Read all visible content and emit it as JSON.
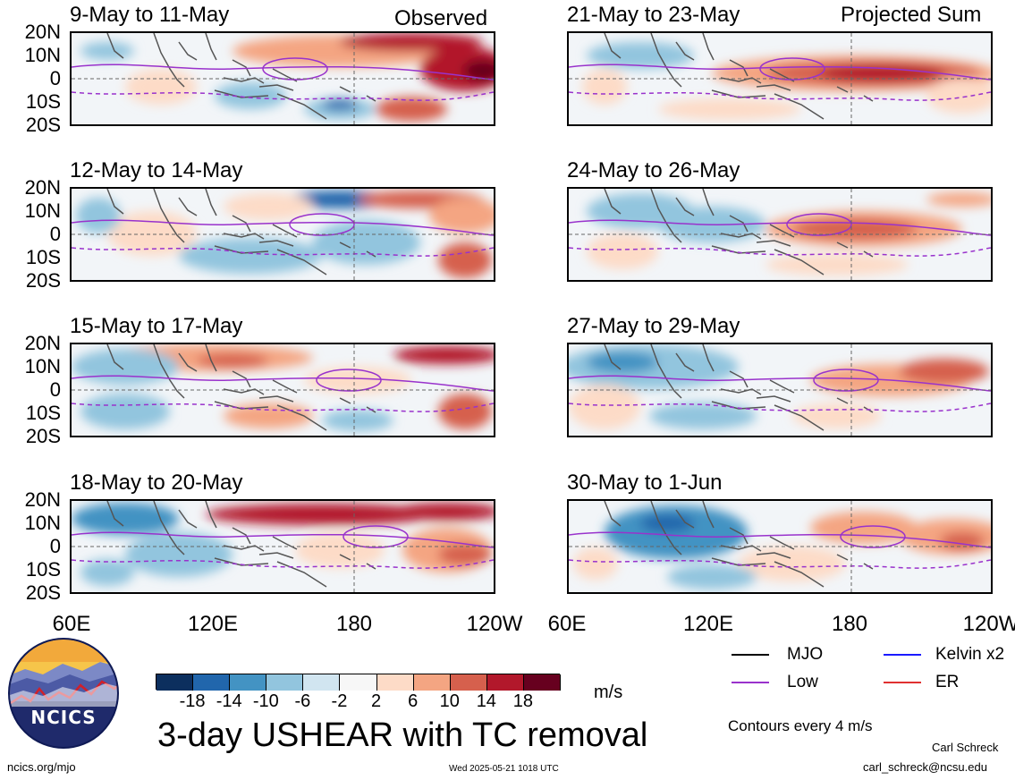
{
  "headers": {
    "left": "Observed",
    "right": "Projected Sum"
  },
  "panels": [
    {
      "title": "9-May to 11-May"
    },
    {
      "title": "12-May to 14-May"
    },
    {
      "title": "15-May to 17-May"
    },
    {
      "title": "18-May to 20-May"
    },
    {
      "title": "21-May to 23-May"
    },
    {
      "title": "24-May to 26-May"
    },
    {
      "title": "27-May to 29-May"
    },
    {
      "title": "30-May to 1-Jun"
    }
  ],
  "lat_labels": [
    "20N",
    "10N",
    "0",
    "10S",
    "20S"
  ],
  "lon_labels": [
    "60E",
    "120E",
    "180",
    "120W"
  ],
  "colorbar": {
    "ticks": [
      "-18",
      "-14",
      "-10",
      "-6",
      "-2",
      "2",
      "6",
      "10",
      "14",
      "18"
    ],
    "colors": [
      "#0c2f5e",
      "#2166ac",
      "#4393c3",
      "#92c5de",
      "#d1e5f0",
      "#f7f7f7",
      "#fddbc7",
      "#f4a582",
      "#d6604d",
      "#b2182b",
      "#67001f"
    ],
    "unit": "m/s"
  },
  "main_title": "3-day USHEAR with TC removal",
  "legend": {
    "items": [
      {
        "label": "MJO",
        "color": "#000000"
      },
      {
        "label": "Kelvin x2",
        "color": "#1a1aff"
      },
      {
        "label": "Low",
        "color": "#9932cc"
      },
      {
        "label": "ER",
        "color": "#e03030"
      }
    ],
    "contour_note": "Contours every 4 m/s"
  },
  "logo_text": "NCICS",
  "footer": {
    "left": "ncics.org/mjo",
    "center": "Wed 2025-05-21 1018 UTC",
    "author": "Carl Schreck",
    "email": "carl_schreck@ncsu.edu"
  }
}
